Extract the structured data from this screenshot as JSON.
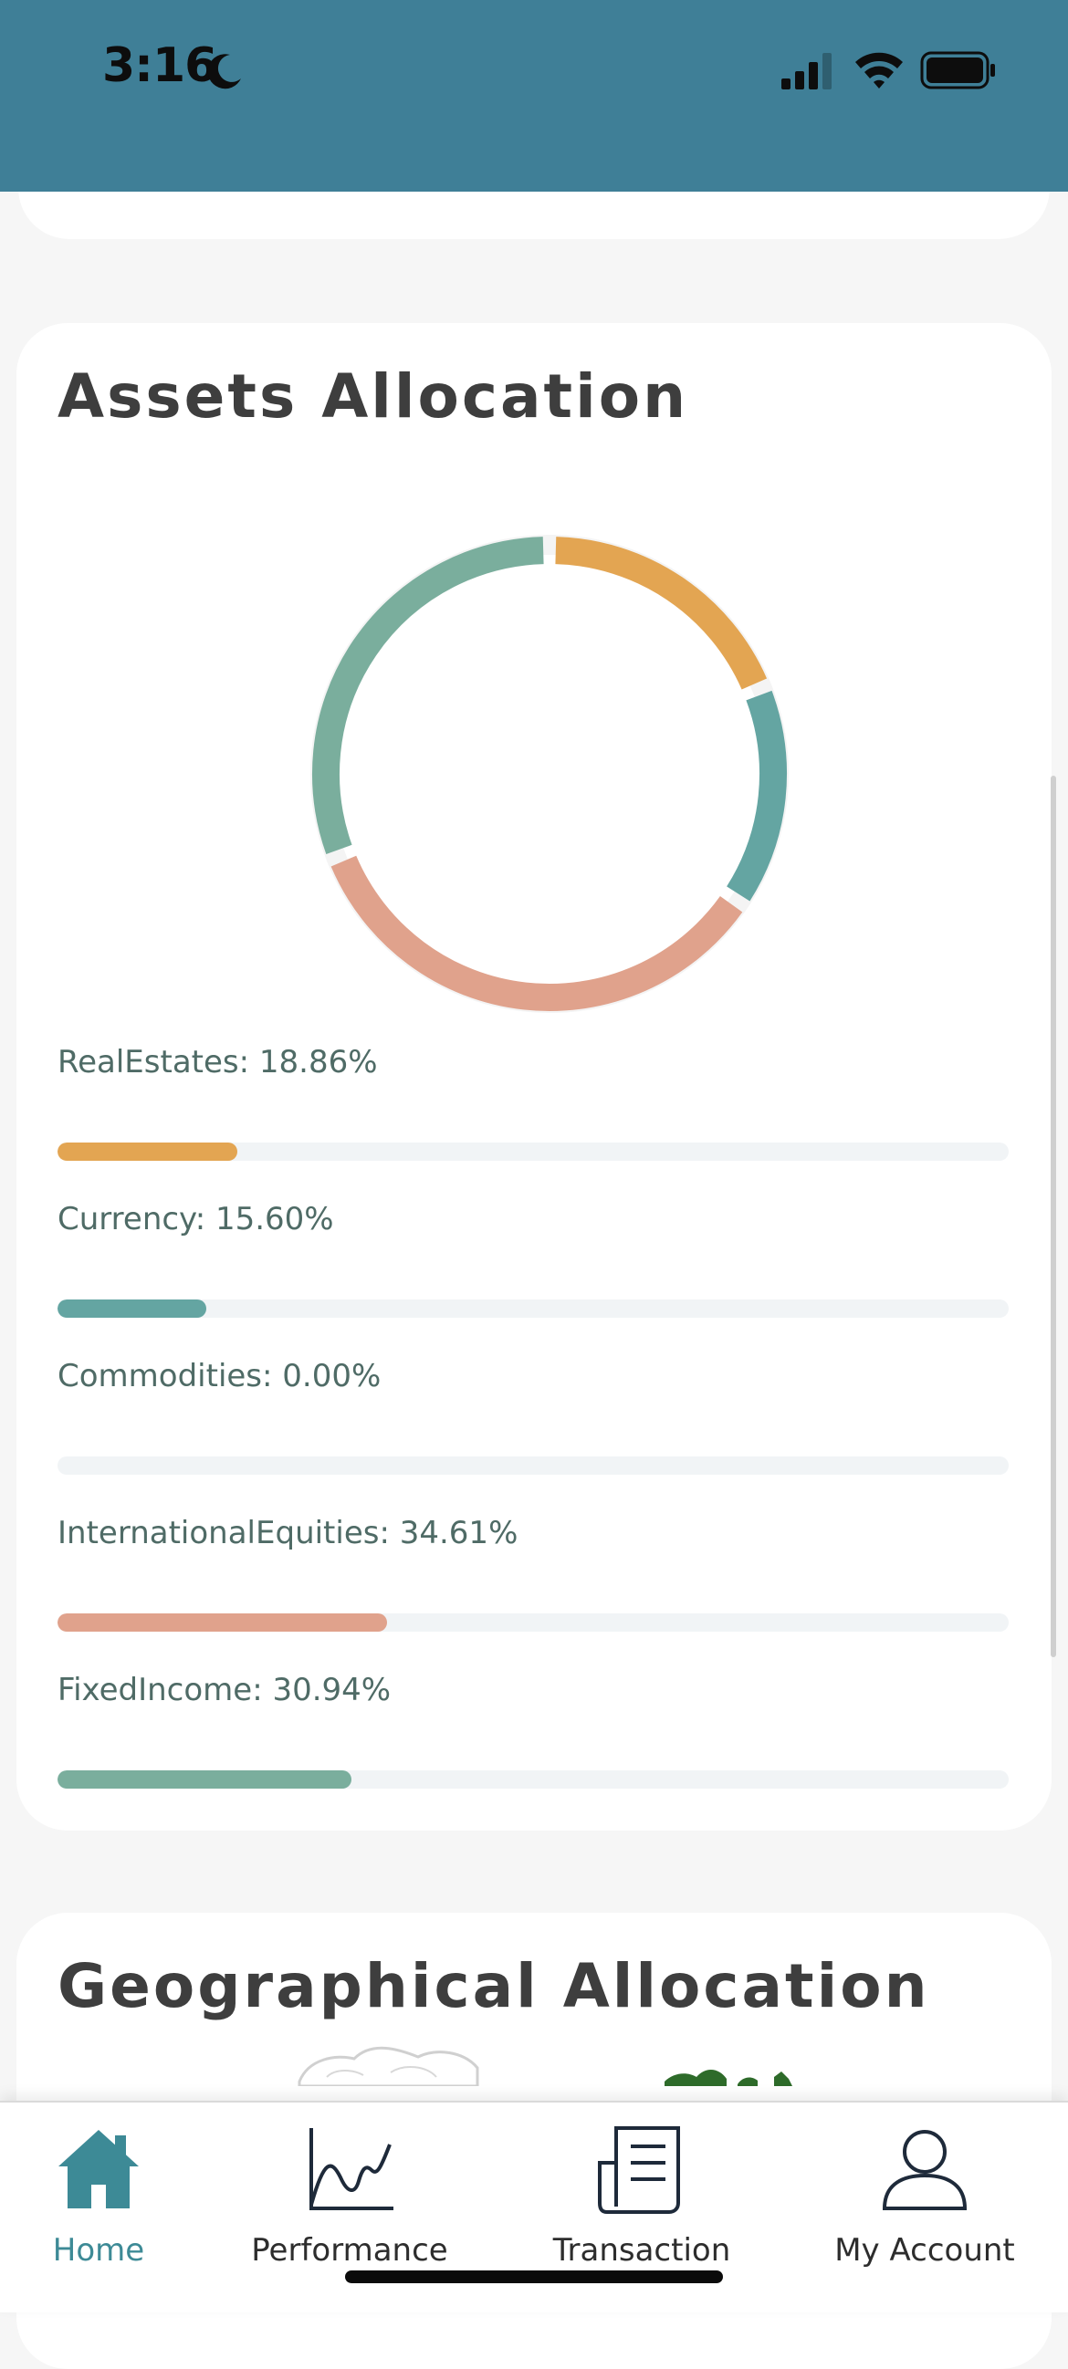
{
  "status_bar": {
    "time": "3:16",
    "icons": [
      "moon-icon",
      "cellular-signal-icon",
      "wifi-icon",
      "battery-icon"
    ]
  },
  "assets": {
    "title": "Assets Allocation",
    "items": [
      {
        "label": "RealEstates: 18.86%",
        "percent": 18.86,
        "color": "#e3a552"
      },
      {
        "label": "Currency: 15.60%",
        "percent": 15.6,
        "color": "#64a5a2"
      },
      {
        "label": "Commodities: 0.00%",
        "percent": 0.0,
        "color": "#7cae9f"
      },
      {
        "label": "InternationalEquities: 34.61%",
        "percent": 34.61,
        "color": "#e0a28c"
      },
      {
        "label": "FixedIncome: 30.94%",
        "percent": 30.94,
        "color": "#7aae9d"
      }
    ]
  },
  "geographical": {
    "title": "Geographical Allocation"
  },
  "nav": {
    "items": [
      {
        "label": "Home",
        "icon": "home-icon",
        "active": true
      },
      {
        "label": "Performance",
        "icon": "chart-line-icon",
        "active": false
      },
      {
        "label": "Transaction",
        "icon": "document-icon",
        "active": false
      },
      {
        "label": "My Account",
        "icon": "user-icon",
        "active": false
      }
    ]
  },
  "colors": {
    "header": "#3f7f97",
    "accent": "#3d8a96",
    "track": "#f1f4f6"
  }
}
